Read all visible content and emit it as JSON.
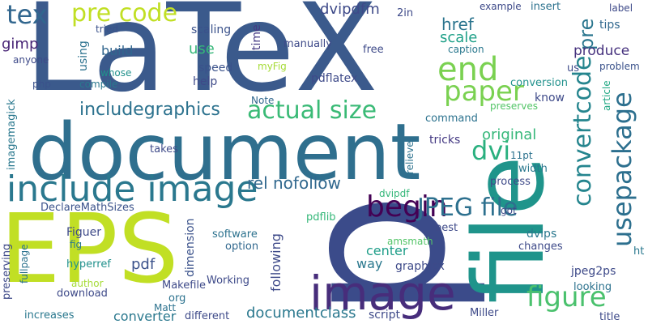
{
  "words": [
    {
      "text": "LaTeX",
      "color": "#3b5a8c"
    },
    {
      "text": "p",
      "color": "#3b4b8a"
    },
    {
      "text": "file",
      "color": "#1f948b"
    },
    {
      "text": "document",
      "color": "#2f6f8e"
    },
    {
      "text": "EPS",
      "color": "#c1df24"
    },
    {
      "text": "image",
      "color": "#472d7b"
    },
    {
      "text": "include image",
      "color": "#2a788e"
    },
    {
      "text": "end",
      "color": "#7ad151"
    },
    {
      "text": "paper",
      "color": "#7ad151"
    },
    {
      "text": "usepackage",
      "color": "#2c6f8e"
    },
    {
      "text": "convertcode",
      "color": "#25858e"
    },
    {
      "text": "figure",
      "color": "#4ac16d"
    },
    {
      "text": "begin",
      "color": "#440154"
    },
    {
      "text": "JPEG file",
      "color": "#2d708e"
    },
    {
      "text": "pre code",
      "color": "#c1df24"
    },
    {
      "text": "tex",
      "color": "#31668e"
    },
    {
      "text": "actual size",
      "color": "#3aba76"
    },
    {
      "text": "includegraphics",
      "color": "#2c728e"
    },
    {
      "text": "dvi",
      "color": "#2ab07f"
    },
    {
      "text": "pre",
      "color": "#2a768e"
    },
    {
      "text": "dvipdfm",
      "color": "#3e4a89"
    },
    {
      "text": "href",
      "color": "#2b748e"
    },
    {
      "text": "scale",
      "color": "#1fa088"
    },
    {
      "text": "produce",
      "color": "#46327e"
    },
    {
      "text": "build",
      "color": "#31668e"
    },
    {
      "text": "use",
      "color": "#35b779"
    },
    {
      "text": "speed",
      "color": "#3b528b"
    },
    {
      "text": "help",
      "color": "#3e4a89"
    },
    {
      "text": "scaling",
      "color": "#3b528b"
    },
    {
      "text": "gimp",
      "color": "#482576"
    },
    {
      "text": "anyone",
      "color": "#3e4a89"
    },
    {
      "text": "php",
      "color": "#3b528b"
    },
    {
      "text": "compile",
      "color": "#2a788e"
    },
    {
      "text": "whose",
      "color": "#21918c"
    },
    {
      "text": "using",
      "color": "#2c728e"
    },
    {
      "text": "tried",
      "color": "#3b528b"
    },
    {
      "text": "manually",
      "color": "#3e4a89"
    },
    {
      "text": "time",
      "color": "#443983"
    },
    {
      "text": "myFig",
      "color": "#a5db36"
    },
    {
      "text": "pdflatex",
      "color": "#3e4a89"
    },
    {
      "text": "Note",
      "color": "#31688e"
    },
    {
      "text": "free",
      "color": "#3e4a89"
    },
    {
      "text": "caption",
      "color": "#2a788e"
    },
    {
      "text": "example",
      "color": "#3e4a89"
    },
    {
      "text": "insert",
      "color": "#2c728e"
    },
    {
      "text": "tips",
      "color": "#31688e"
    },
    {
      "text": "label",
      "color": "#3e4a89"
    },
    {
      "text": "us",
      "color": "#3e4a89"
    },
    {
      "text": "problem",
      "color": "#3b528b"
    },
    {
      "text": "article",
      "color": "#22a884"
    },
    {
      "text": "conversion",
      "color": "#21918c"
    },
    {
      "text": "preserves",
      "color": "#54c568"
    },
    {
      "text": "know",
      "color": "#3e4a89"
    },
    {
      "text": "command",
      "color": "#2c728e"
    },
    {
      "text": "rel nofollow",
      "color": "#31688e"
    },
    {
      "text": "original",
      "color": "#35b779"
    },
    {
      "text": "11pt",
      "color": "#2c728e"
    },
    {
      "text": "width",
      "color": "#2a788e"
    },
    {
      "text": "process",
      "color": "#3e4a89"
    },
    {
      "text": "tricks",
      "color": "#443983"
    },
    {
      "text": "takes",
      "color": "#3e4a89"
    },
    {
      "text": "relieve",
      "color": "#2c728e"
    },
    {
      "text": "dvipdf",
      "color": "#35b779"
    },
    {
      "text": "got",
      "color": "#3e4a89"
    },
    {
      "text": "imagemagick",
      "color": "#2a788e"
    },
    {
      "text": "DeclareMathSizes",
      "color": "#3b528b"
    },
    {
      "text": "pdflib",
      "color": "#35b779"
    },
    {
      "text": "dimension",
      "color": "#3b528b"
    },
    {
      "text": "software",
      "color": "#2c728e"
    },
    {
      "text": "option",
      "color": "#31688e"
    },
    {
      "text": "best",
      "color": "#3e4a89"
    },
    {
      "text": "amsmath",
      "color": "#54c568"
    },
    {
      "text": "dvips",
      "color": "#2a788e"
    },
    {
      "text": "changes",
      "color": "#3e4a89"
    },
    {
      "text": "center",
      "color": "#1f9e89"
    },
    {
      "text": "way",
      "color": "#2a788e"
    },
    {
      "text": "graphicx",
      "color": "#3e4a89"
    },
    {
      "text": "following",
      "color": "#3e4a89"
    },
    {
      "text": "jpeg2ps",
      "color": "#3e4a89"
    },
    {
      "text": "looking",
      "color": "#2c728e"
    },
    {
      "text": "ht",
      "color": "#2a788e"
    },
    {
      "text": "Figuer",
      "color": "#3e4a89"
    },
    {
      "text": "fig",
      "color": "#2a788e"
    },
    {
      "text": "hyperref",
      "color": "#21918c"
    },
    {
      "text": "author",
      "color": "#a5db36"
    },
    {
      "text": "download",
      "color": "#3e4a89"
    },
    {
      "text": "Working",
      "color": "#3e4a89"
    },
    {
      "text": "Makefile",
      "color": "#3e4a89"
    },
    {
      "text": "pdf",
      "color": "#3b528b"
    },
    {
      "text": "org",
      "color": "#2c728e"
    },
    {
      "text": "preserving",
      "color": "#3e4a89"
    },
    {
      "text": "fullpage",
      "color": "#2c728e"
    },
    {
      "text": "increases",
      "color": "#2a788e"
    },
    {
      "text": "converter",
      "color": "#2a788e"
    },
    {
      "text": "Matt",
      "color": "#2c728e"
    },
    {
      "text": "different",
      "color": "#3e4a89"
    },
    {
      "text": "documentclass",
      "color": "#2a788e"
    },
    {
      "text": "script",
      "color": "#3e4a89"
    },
    {
      "text": "Miller",
      "color": "#3e4a89"
    },
    {
      "text": "title",
      "color": "#3e4a89"
    },
    {
      "text": "2in",
      "color": "#3e4a89"
    }
  ]
}
